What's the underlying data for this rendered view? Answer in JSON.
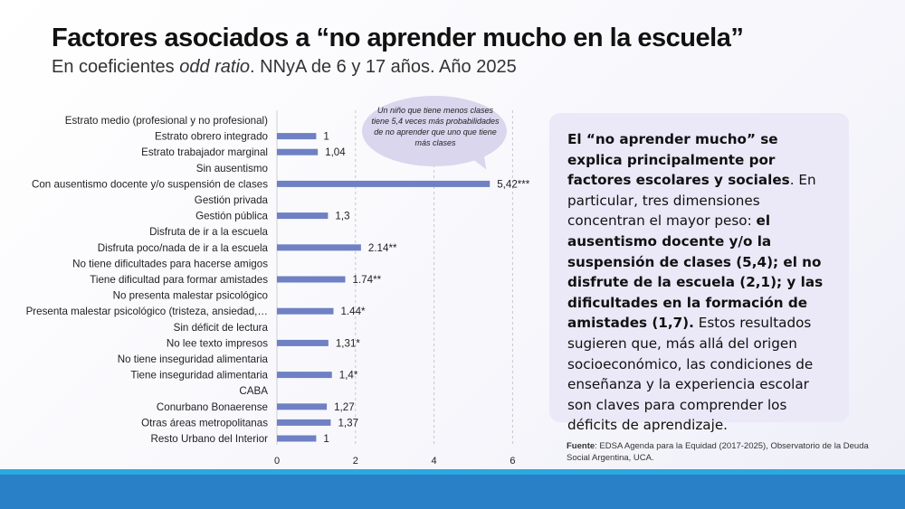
{
  "header": {
    "title": "Factores asociados a “no aprender mucho en la escuela”",
    "subtitle_pre": "En coeficientes ",
    "subtitle_italic": "odd ratio",
    "subtitle_post": ". NNyA de 6 y 17 años. Año 2025"
  },
  "chart_data": {
    "type": "bar",
    "orientation": "horizontal",
    "title": "",
    "xlabel": "",
    "ylabel": "",
    "xlim": [
      0,
      6.3
    ],
    "xticks": [
      "0",
      "2",
      "4",
      "6"
    ],
    "grid": "vertical-dashed",
    "categories": [
      "Estrato medio (profesional y no profesional)",
      "Estrato obrero integrado",
      "Estrato trabajador marginal",
      "Sin ausentismo",
      "Con ausentismo docente y/o suspensión de clases",
      "Gestión privada",
      "Gestión pública",
      "Disfruta de ir a la escuela",
      "Disfruta poco/nada de ir a la escuela",
      "No tiene dificultades para hacerse amigos",
      "Tiene dificultad para formar amistades",
      "No presenta malestar psicológico",
      "Presenta malestar psicológico (tristeza, ansiedad,…",
      "Sin déficit de lectura",
      "No lee texto impresos",
      "No tiene inseguridad alimentaria",
      "Tiene inseguridad alimentaria",
      "CABA",
      "Conurbano Bonaerense",
      "Otras áreas metropolitanas",
      "Resto Urbano del Interior"
    ],
    "values": [
      null,
      1,
      1.04,
      null,
      5.42,
      null,
      1.3,
      null,
      2.14,
      null,
      1.74,
      null,
      1.44,
      null,
      1.31,
      null,
      1.4,
      null,
      1.27,
      1.37,
      1
    ],
    "labels": [
      null,
      "1",
      "1,04",
      null,
      "5,42***",
      null,
      "1,3",
      null,
      "2.14**",
      null,
      "1.74**",
      null,
      "1.44*",
      null,
      "1,31*",
      null,
      "1,4*",
      null,
      "1,27",
      "1,37",
      "1"
    ],
    "bar_color": "#6f80c4"
  },
  "callout": {
    "text": "Un niño que tiene menos clases tiene 5,4 veces más probabilidades de no aprender que uno que tiene más clases"
  },
  "textbox": {
    "b1": "El “no aprender mucho” se explica principalmente por factores escolares y sociales",
    "t1": ". En particular, tres dimensiones concentran el mayor peso: ",
    "b2": "el ausentismo docente y/o la suspensión de clases (5,4); el no disfrute de la escuela (2,1); y las dificultades en la formación de amistades (1,7).",
    "t2": " Estos resultados sugieren que, más allá del origen socioeconómico, las condiciones de enseñanza y la experiencia escolar son claves para comprender los déficits de aprendizaje."
  },
  "source": {
    "label": "Fuente",
    "text": ": EDSA Agenda para la Equidad (2017-2025), Observatorio de la Deuda Social Argentina, UCA."
  }
}
